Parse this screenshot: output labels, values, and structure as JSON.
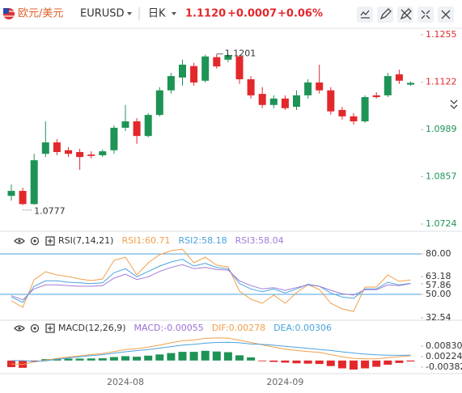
{
  "header": {
    "name": "欧元/美元",
    "symbol": "EURUSD",
    "period": "日K",
    "price": "1.1120",
    "change": "+0.0007",
    "change_pct": "+0.06%"
  },
  "chart_data": [
    {
      "type": "candlestick",
      "categories": [
        null,
        null,
        null,
        null,
        null,
        null,
        null,
        null,
        null,
        null,
        "2024-08",
        null,
        null,
        null,
        null,
        null,
        null,
        null,
        null,
        null,
        null,
        null,
        null,
        null,
        "2024-09",
        null,
        null,
        null,
        null,
        null,
        null,
        null,
        null,
        null,
        null,
        null
      ],
      "open": [
        1.0803,
        1.0817,
        1.078,
        1.0921,
        1.0953,
        1.0931,
        1.0926,
        1.0919,
        1.0917,
        1.0931,
        1.0994,
        1.1012,
        1.0971,
        1.103,
        1.1099,
        1.1135,
        1.1167,
        1.1126,
        1.1192,
        1.1185,
        1.1194,
        1.113,
        1.1089,
        1.1058,
        1.1076,
        1.1053,
        1.1085,
        1.1121,
        1.1099,
        1.1044,
        1.1026,
        1.1012,
        1.1085,
        1.1085,
        1.1144,
        1.1115
      ],
      "high": [
        1.0835,
        1.0826,
        1.0921,
        1.1012,
        1.0962,
        1.094,
        1.0935,
        1.0928,
        1.0933,
        1.1001,
        1.1058,
        1.1021,
        1.1035,
        1.1108,
        1.1148,
        1.1185,
        1.1176,
        1.1199,
        1.1201,
        1.12,
        1.1198,
        1.1139,
        1.1108,
        1.1085,
        1.1085,
        1.1099,
        1.113,
        1.1171,
        1.1108,
        1.1053,
        1.1035,
        1.1085,
        1.1094,
        1.1148,
        1.1157,
        1.1124
      ],
      "low": [
        1.079,
        1.0777,
        1.0778,
        1.0912,
        1.0917,
        1.0912,
        1.0876,
        1.0908,
        1.0912,
        1.0921,
        1.0985,
        1.0949,
        1.0967,
        1.1026,
        1.109,
        1.1112,
        1.1112,
        1.1121,
        1.116,
        1.1178,
        1.1117,
        1.1076,
        1.1049,
        1.1049,
        1.1044,
        1.1044,
        1.1076,
        1.109,
        1.1031,
        1.1017,
        1.1003,
        1.1008,
        1.1076,
        1.108,
        1.1117,
        1.1112
      ],
      "close": [
        1.0817,
        1.078,
        1.0903,
        1.0953,
        1.0926,
        1.0921,
        1.0912,
        1.0915,
        1.0928,
        1.0994,
        1.1012,
        1.0971,
        1.103,
        1.1099,
        1.1139,
        1.1171,
        1.1121,
        1.1194,
        1.1166,
        1.1198,
        1.113,
        1.1085,
        1.1058,
        1.1076,
        1.1049,
        1.1085,
        1.1121,
        1.1099,
        1.104,
        1.1026,
        1.1012,
        1.108,
        1.108,
        1.1139,
        1.1126,
        1.112
      ],
      "up_color": "#1e9356",
      "down_color": "#e3282c",
      "ylim": [
        1.0706,
        1.1273
      ],
      "yticks": [
        1.1255,
        1.1122,
        1.0989,
        1.0857,
        1.0724
      ]
    },
    {
      "type": "line",
      "title": "RSI(7,14,21)",
      "series": [
        {
          "name": "RSI1:60.71",
          "color": "#f0a04b",
          "values": [
            45.2,
            40.4,
            60.8,
            66.8,
            64.4,
            63.2,
            61.4,
            60.2,
            61.4,
            75.2,
            77.6,
            64.4,
            73.4,
            79.4,
            82.4,
            83.6,
            73.4,
            77.6,
            71.6,
            70.4,
            52.4,
            46.4,
            43.4,
            49.4,
            43.4,
            51.2,
            57.2,
            53.6,
            43.4,
            39.2,
            37.4,
            55.4,
            55.4,
            64.4,
            59.6,
            60.71
          ]
        },
        {
          "name": "RSI2:58.18",
          "color": "#4aa3df",
          "values": [
            48,
            44,
            56,
            60,
            60,
            59,
            58.5,
            58,
            58.5,
            66,
            69,
            63,
            67,
            71,
            74,
            76,
            71,
            73,
            70,
            69,
            58,
            54,
            52,
            54,
            51,
            54,
            57.5,
            56,
            51,
            48,
            47,
            54,
            54,
            59,
            57,
            58.18
          ]
        },
        {
          "name": "RSI3:58.04",
          "color": "#a07bd8",
          "values": [
            49,
            46,
            54,
            57,
            57,
            56.5,
            56,
            56,
            56.5,
            62,
            65,
            61,
            63,
            67,
            70,
            72,
            69,
            70,
            68.5,
            68,
            60,
            56.5,
            54,
            55,
            53,
            55,
            57,
            56,
            53,
            50.5,
            49.5,
            53.5,
            53.5,
            57,
            56.5,
            58.04
          ]
        }
      ],
      "ylim": [
        30.8,
        84.8
      ],
      "yticks": [
        {
          "value": 80,
          "label": "80.00"
        },
        63.18,
        57.86,
        {
          "value": 50,
          "label": "50.00"
        },
        32.54
      ],
      "reference_lines": [
        80,
        50
      ],
      "reference_color": "#4aa3df"
    },
    {
      "type": "combo",
      "title": "MACD(12,26,9)",
      "series": [
        {
          "name": "MACD:-0.00055",
          "type": "bar",
          "color": "#9d6fd6",
          "up_color": "#1e9356",
          "down_color": "#e3282c",
          "values": [
            -0.0038,
            -0.0042,
            -0.0005,
            0.0008,
            0.001,
            0.0011,
            0.0011,
            0.0012,
            0.0013,
            0.002,
            0.0025,
            0.0022,
            0.0028,
            0.0035,
            0.0043,
            0.005,
            0.005,
            0.0056,
            0.0052,
            0.0048,
            0.003,
            0.0018,
            -0.0004,
            -0.0008,
            -0.0012,
            -0.0016,
            -0.0018,
            -0.002,
            -0.0032,
            -0.0045,
            -0.0052,
            -0.0045,
            -0.0036,
            -0.0024,
            -0.0014,
            -0.00055
          ]
        },
        {
          "name": "DIF:0.00278",
          "type": "line",
          "color": "#f0a04b",
          "values": [
            -0.002,
            -0.0022,
            -0.0008,
            0.0002,
            0.0012,
            0.002,
            0.0027,
            0.0034,
            0.004,
            0.0052,
            0.0063,
            0.0068,
            0.0077,
            0.0089,
            0.0102,
            0.0114,
            0.0118,
            0.0128,
            0.013,
            0.0129,
            0.0117,
            0.0104,
            0.009,
            0.0078,
            0.0066,
            0.0058,
            0.0052,
            0.0047,
            0.0034,
            0.0022,
            0.0012,
            0.001,
            0.001,
            0.0017,
            0.0022,
            0.00278
          ]
        },
        {
          "name": "DEA:0.00306",
          "type": "line",
          "color": "#4aa3df",
          "values": [
            -0.0001,
            -0.0001,
            -0.00055,
            -0.0002,
            0.0007,
            0.00145,
            0.00215,
            0.0028,
            0.00335,
            0.0042,
            0.00505,
            0.0057,
            0.0063,
            0.00715,
            0.00805,
            0.0089,
            0.0093,
            0.01,
            0.0104,
            0.0105,
            0.0102,
            0.0095,
            0.0093,
            0.0088,
            0.0082,
            0.0076,
            0.007,
            0.0064,
            0.0058,
            0.005,
            0.0043,
            0.0037,
            0.0033,
            0.0031,
            0.003,
            0.00306
          ]
        }
      ],
      "ylim": [
        -0.0066,
        0.0139
      ],
      "yticks": [
        {
          "value": 0.0083,
          "label": "0.00830"
        },
        0.00224,
        -0.00382
      ]
    }
  ]
}
